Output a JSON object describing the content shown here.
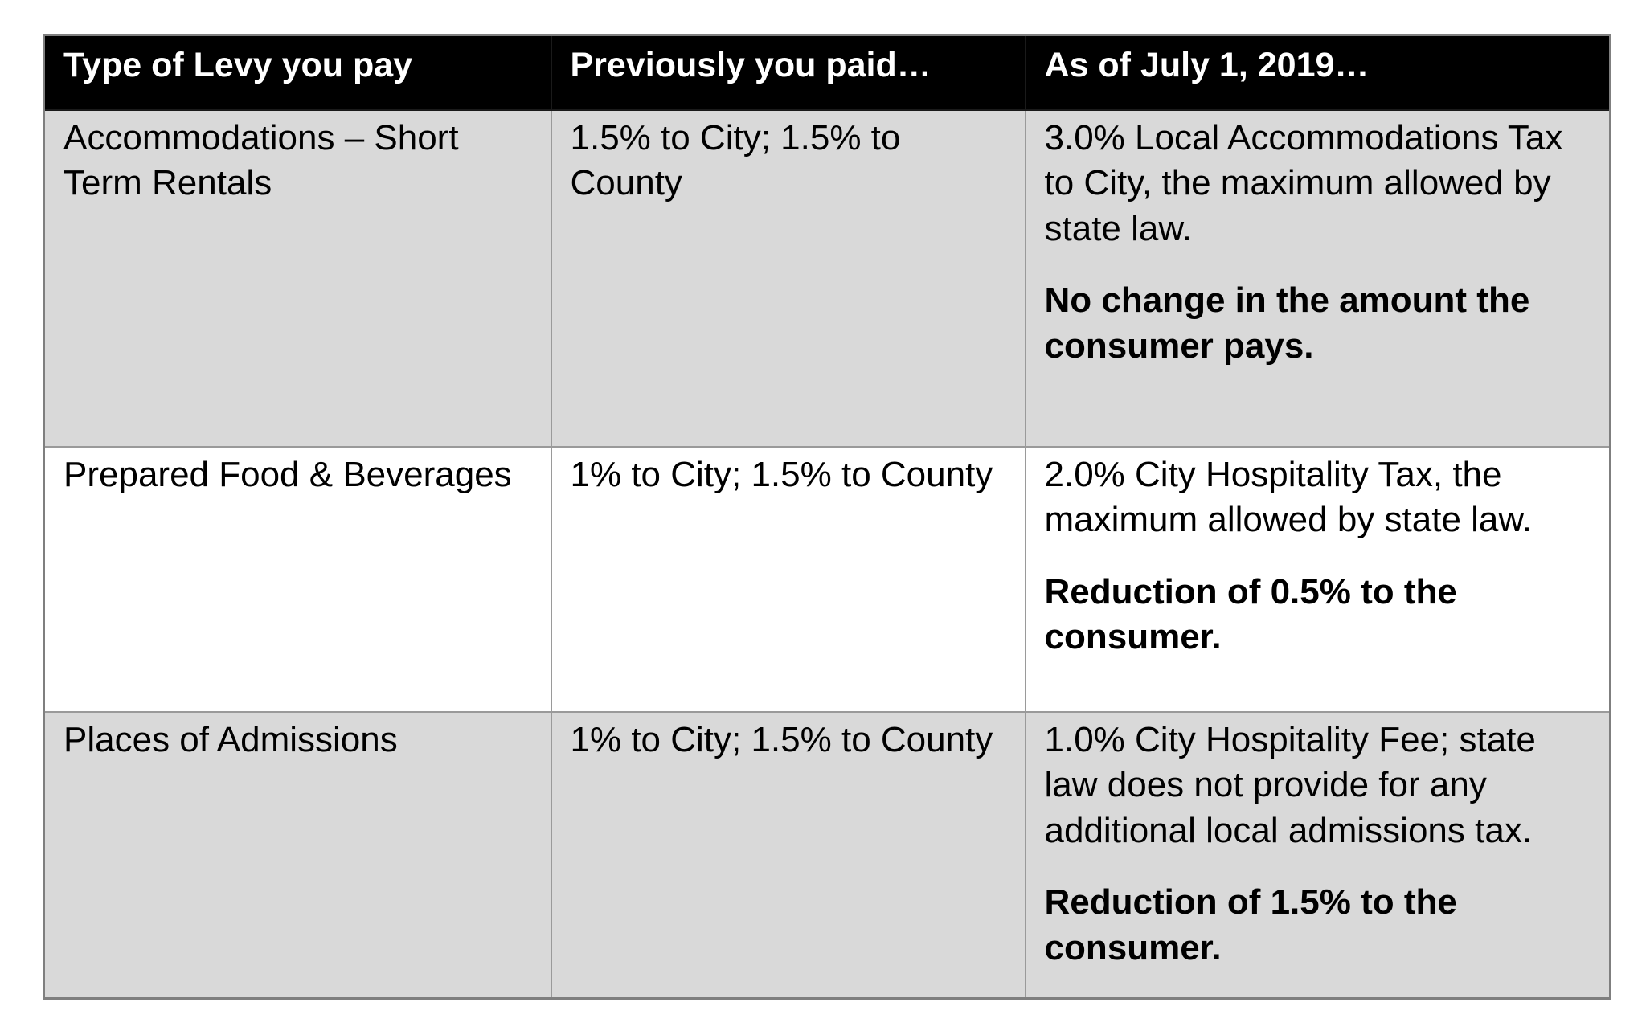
{
  "table": {
    "headers": [
      "Type of Levy you pay",
      "Previously you paid…",
      "As of July 1, 2019…"
    ],
    "rows": [
      {
        "type": "Accommodations – Short Term Rentals",
        "previous": "1.5% to City; 1.5% to County",
        "current": "3.0% Local Accommodations Tax to City, the maximum allowed by state law.",
        "note": "No change in the amount the consumer pays."
      },
      {
        "type": "Prepared Food & Beverages",
        "previous": "1% to City; 1.5% to County",
        "current": "2.0% City Hospitality Tax, the maximum allowed by state law.",
        "note": "Reduction of 0.5% to the consumer."
      },
      {
        "type": "Places of Admissions",
        "previous": "1% to City; 1.5% to County",
        "current": "1.0% City Hospitality Fee; state law does not provide for any additional local admissions tax.",
        "note": "Reduction of 1.5% to the consumer."
      }
    ]
  },
  "colors": {
    "header_bg": "#000000",
    "header_text": "#ffffff",
    "shaded_row_bg": "#d9d9d9",
    "plain_row_bg": "#ffffff",
    "border": "#9a9a9a"
  }
}
